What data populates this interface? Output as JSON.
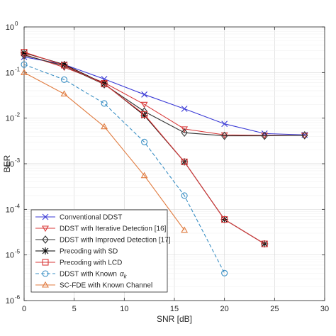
{
  "chart_data": {
    "type": "line",
    "title": "",
    "xlabel": "SNR [dB]",
    "ylabel": "BER",
    "xlim": [
      0,
      30
    ],
    "ylim": [
      1e-06,
      1
    ],
    "yscale": "log",
    "grid": true,
    "legend_position": "bottom-left",
    "x_ticks": [
      0,
      5,
      10,
      15,
      20,
      25,
      30
    ],
    "x_tick_labels": [
      "0",
      "5",
      "10",
      "15",
      "20",
      "25",
      "30"
    ],
    "y_ticks": [
      1e-06,
      1e-05,
      0.0001,
      0.001,
      0.01,
      0.1,
      1
    ],
    "y_tick_labels": [
      {
        "base": "10",
        "exp": "-6"
      },
      {
        "base": "10",
        "exp": "-5"
      },
      {
        "base": "10",
        "exp": "-4"
      },
      {
        "base": "10",
        "exp": "-3"
      },
      {
        "base": "10",
        "exp": "-2"
      },
      {
        "base": "10",
        "exp": "-1"
      },
      {
        "base": "10",
        "exp": "0"
      }
    ],
    "series": [
      {
        "name": "Conventional DDST",
        "color": "#3a3ad6",
        "marker": "x",
        "dash": "solid",
        "x": [
          0,
          4,
          8,
          12,
          16,
          20,
          24,
          28
        ],
        "y": [
          0.22,
          0.15,
          0.072,
          0.033,
          0.016,
          0.0075,
          0.0046,
          0.0043
        ]
      },
      {
        "name": "DDST with Iterative Detection [16]",
        "color": "#d93a3a",
        "marker": "triangle-down",
        "dash": "solid",
        "x": [
          0,
          4,
          8,
          12,
          16,
          20,
          24,
          28
        ],
        "y": [
          0.25,
          0.13,
          0.06,
          0.02,
          0.0058,
          0.0043,
          0.0042,
          0.0042
        ]
      },
      {
        "name": "DDST with Improved Detection [17]",
        "color": "#333333",
        "marker": "diamond",
        "dash": "solid",
        "x": [
          0,
          4,
          8,
          12,
          16,
          20,
          24,
          28
        ],
        "y": [
          0.24,
          0.14,
          0.055,
          0.014,
          0.0048,
          0.0041,
          0.0041,
          0.0042
        ]
      },
      {
        "name": "Precoding with SD",
        "color": "#000000",
        "marker": "asterisk",
        "dash": "solid",
        "x": [
          0,
          4,
          8,
          12,
          16,
          20,
          24
        ],
        "y": [
          0.27,
          0.15,
          0.057,
          0.0115,
          0.0011,
          6e-05,
          1.75e-05
        ]
      },
      {
        "name": "Precoding with LCD",
        "color": "#d93a3a",
        "marker": "square",
        "dash": "solid",
        "x": [
          0,
          4,
          8,
          12,
          16,
          20,
          24
        ],
        "y": [
          0.28,
          0.145,
          0.056,
          0.012,
          0.0011,
          6e-05,
          1.75e-05
        ]
      },
      {
        "name": "DDST with Known α_k",
        "color": "#3a8fc4",
        "marker": "circle",
        "dash": "dashed",
        "x": [
          0,
          4,
          8,
          12,
          16,
          20
        ],
        "y": [
          0.15,
          0.07,
          0.021,
          0.003,
          0.0002,
          4e-06
        ]
      },
      {
        "name": "SC-FDE with Known Channel",
        "color": "#e07b3f",
        "marker": "triangle-up",
        "dash": "solid",
        "x": [
          0,
          4,
          8,
          12,
          16
        ],
        "y": [
          0.1,
          0.034,
          0.0065,
          0.00055,
          3.5e-05
        ]
      }
    ],
    "legend": [
      {
        "label": "Conventional DDST"
      },
      {
        "label": "DDST with Iterative Detection [16]"
      },
      {
        "label": "DDST with Improved Detection [17]"
      },
      {
        "label": "Precoding with SD"
      },
      {
        "label": "Precoding with LCD"
      },
      {
        "label": "DDST with Known",
        "symbol": "α",
        "subscript": "k"
      },
      {
        "label": "SC-FDE with Known Channel"
      }
    ]
  }
}
